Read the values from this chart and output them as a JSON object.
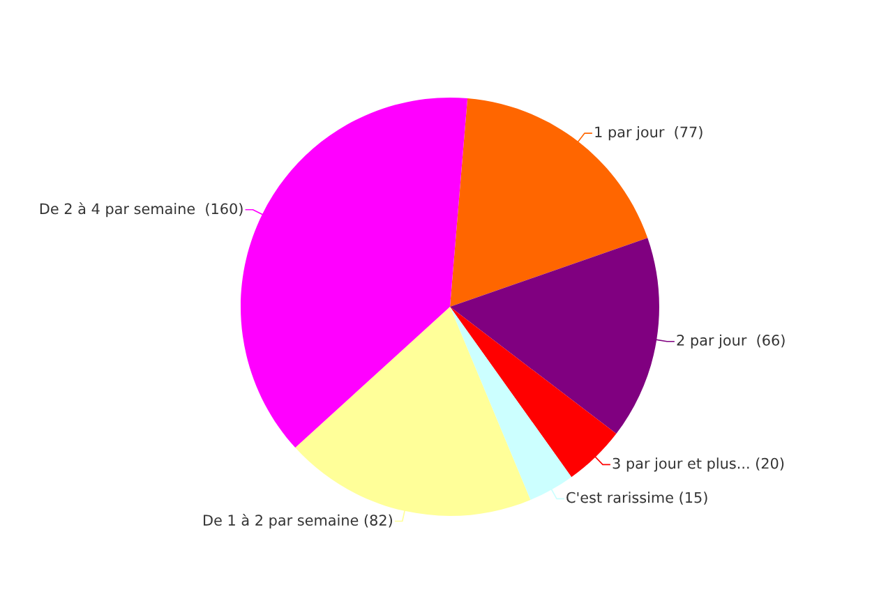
{
  "chart_data": {
    "type": "pie",
    "categories": [
      "1 par jour ",
      "2 par jour ",
      "3 par jour et plus...",
      "C'est rarissime",
      "De 1 à 2 par semaine",
      "De 2 à 4 par semaine "
    ],
    "values": [
      77,
      66,
      20,
      15,
      82,
      160
    ],
    "value_labels": [
      "(77)",
      "(66)",
      "(20)",
      "(15)",
      "(82)",
      "(160)"
    ],
    "colors": [
      "#ff6600",
      "#800080",
      "#ff0000",
      "#ccffff",
      "#ffff99",
      "#ff00ff"
    ]
  }
}
